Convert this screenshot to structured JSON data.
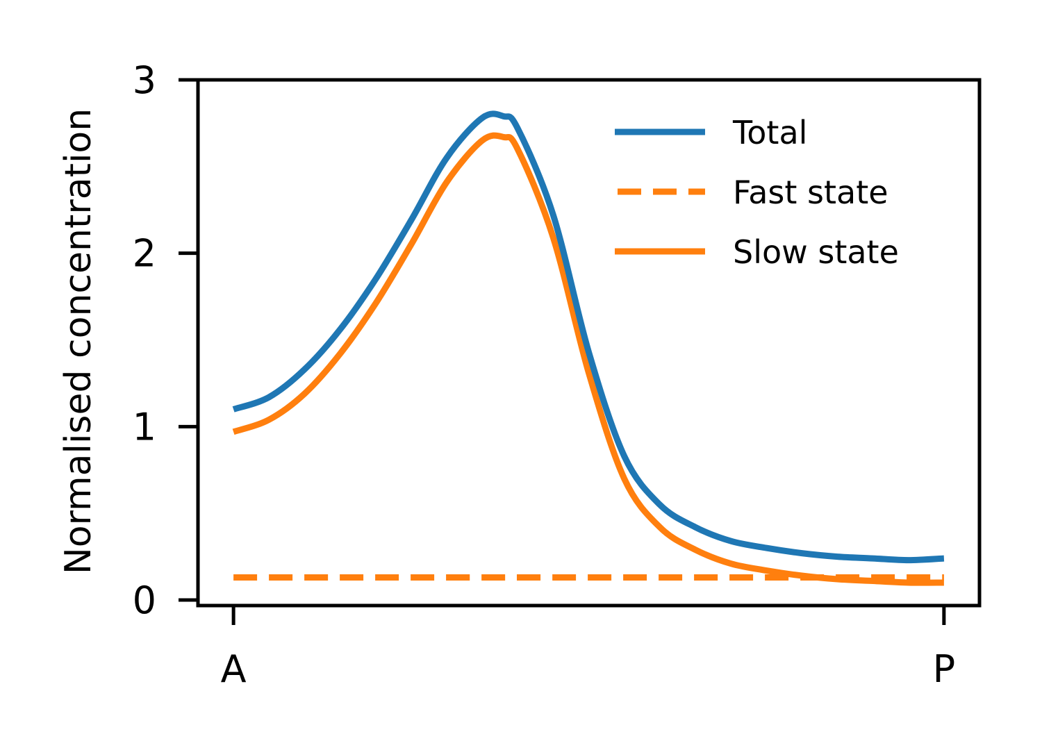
{
  "chart_data": {
    "type": "line",
    "title": "",
    "xlabel": "",
    "ylabel": "Normalised concentration",
    "x": [
      0,
      0.05,
      0.1,
      0.15,
      0.2,
      0.25,
      0.3,
      0.35,
      0.38,
      0.4,
      0.45,
      0.5,
      0.55,
      0.6,
      0.65,
      0.7,
      0.75,
      0.8,
      0.85,
      0.9,
      0.95,
      1.0
    ],
    "x_tick_values": [
      0,
      1
    ],
    "x_tick_labels": [
      "A",
      "P"
    ],
    "xlim": [
      -0.05,
      1.05
    ],
    "ylim": [
      0,
      3
    ],
    "y_ticks": [
      0,
      1,
      2,
      3
    ],
    "grid": false,
    "legend_position": "top-right",
    "series": [
      {
        "name": "Total",
        "color": "#1f77b4",
        "style": "solid",
        "values": [
          1.1,
          1.17,
          1.33,
          1.56,
          1.85,
          2.19,
          2.55,
          2.78,
          2.79,
          2.72,
          2.22,
          1.43,
          0.83,
          0.55,
          0.42,
          0.34,
          0.3,
          0.27,
          0.25,
          0.24,
          0.23,
          0.24
        ]
      },
      {
        "name": "Fast state",
        "color": "#ff7f0e",
        "style": "dashed",
        "values": [
          0.13,
          0.13,
          0.13,
          0.13,
          0.13,
          0.13,
          0.13,
          0.13,
          0.13,
          0.13,
          0.13,
          0.13,
          0.13,
          0.13,
          0.13,
          0.13,
          0.13,
          0.13,
          0.13,
          0.13,
          0.13,
          0.13
        ]
      },
      {
        "name": "Slow state",
        "color": "#ff7f0e",
        "style": "solid",
        "values": [
          0.97,
          1.04,
          1.19,
          1.42,
          1.71,
          2.05,
          2.41,
          2.65,
          2.67,
          2.6,
          2.09,
          1.31,
          0.7,
          0.42,
          0.29,
          0.21,
          0.17,
          0.14,
          0.12,
          0.11,
          0.1,
          0.1
        ]
      }
    ]
  }
}
